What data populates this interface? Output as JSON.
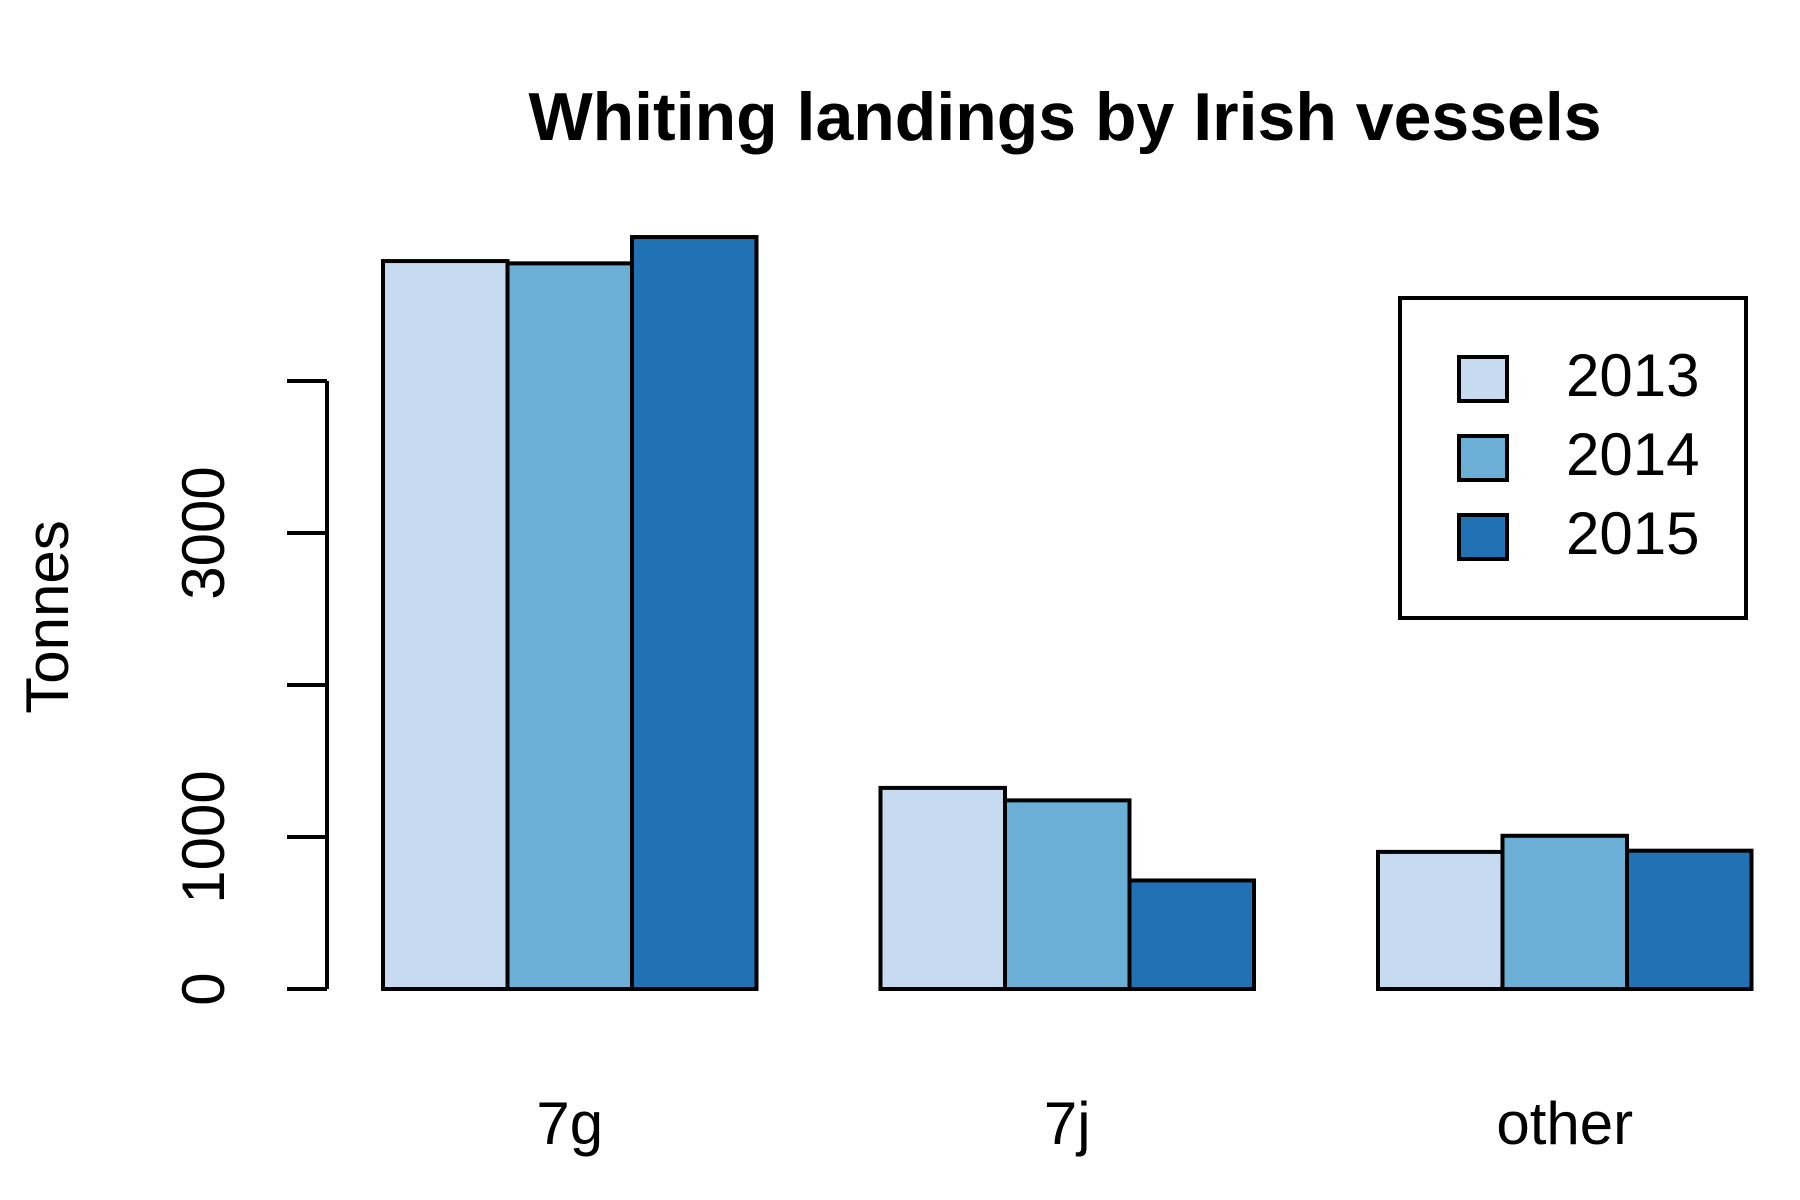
{
  "chart_data": {
    "type": "bar",
    "title": "Whiting landings by Irish vessels",
    "y_label": "Tonnes",
    "categories": [
      "7g",
      "7j",
      "other"
    ],
    "series": [
      {
        "name": "2013",
        "color": "#c6dbef",
        "values": [
          4789,
          1323,
          902
        ]
      },
      {
        "name": "2014",
        "color": "#6baed6",
        "values": [
          4774,
          1241,
          1008
        ]
      },
      {
        "name": "2015",
        "color": "#2171b5",
        "values": [
          4947,
          714,
          910
        ]
      }
    ],
    "ylim": [
      0,
      5000
    ],
    "yticks": [
      0,
      1000,
      {
        "value": 2000,
        "label": null
      },
      3000,
      {
        "value": 4000,
        "label": null
      }
    ],
    "legend": "top-right"
  }
}
